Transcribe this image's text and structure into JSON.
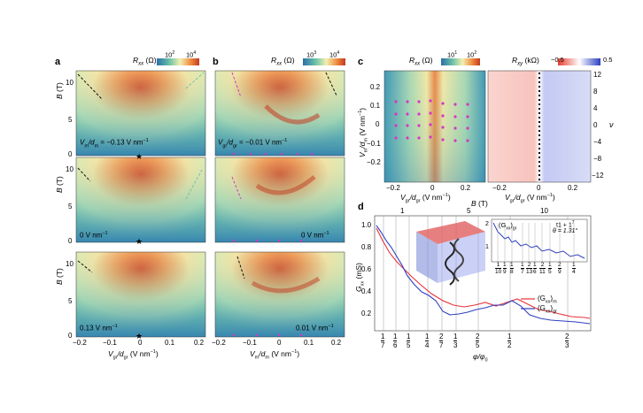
{
  "figure": {
    "panel_letters": {
      "a": "a",
      "b": "b",
      "c": "c",
      "d": "d"
    },
    "panel_a": {
      "colorbar": {
        "title": "R",
        "sub": "xx",
        "unit": "(Ω)",
        "tick1": "10",
        "tick1_exp": "2",
        "tick2": "10",
        "tick2_exp": "4"
      },
      "y_axis_label": "B (T)",
      "y_ticks": [
        "10",
        "5",
        "0"
      ],
      "x_ticks": [
        "−0.2",
        "−0.1",
        "0",
        "0.1",
        "0.2"
      ],
      "x_axis_label": "Vgr/dgr (V nm⁻¹)",
      "x_label_parts": {
        "a": "V",
        "b": "gr",
        "c": "/d",
        "d": "gr",
        "e": " (V nm",
        "f": "−1",
        "g": ")"
      },
      "subplot_labels": {
        "top_pre": "V",
        "top_sub1": "m",
        "top_mid": "/d",
        "top_sub2": "m",
        "top_val": " = −0.13 V nm",
        "top_exp": "−1",
        "mid": "0 V nm",
        "mid_exp": "−1",
        "bot": "0.13 V nm",
        "bot_exp": "−1"
      }
    },
    "panel_b": {
      "colorbar": {
        "title": "R",
        "sub": "xx",
        "unit": "(Ω)",
        "tick1": "10",
        "tick1_exp": "3",
        "tick2": "10",
        "tick2_exp": "4"
      },
      "x_ticks": [
        "−0.2",
        "−0.1",
        "0",
        "0.1",
        "0.2"
      ],
      "x_label_parts": {
        "a": "V",
        "b": "m",
        "c": "/d",
        "d": "m",
        "e": " (V nm",
        "f": "−1",
        "g": ")"
      },
      "subplot_labels": {
        "top_pre": "V",
        "top_sub1": "gr",
        "top_mid": "/d",
        "top_sub2": "gr",
        "top_val": " = −0.01 V nm",
        "top_exp": "−1",
        "mid": "0 V nm",
        "mid_exp": "−1",
        "bot": "0.01 V nm",
        "bot_exp": "−1"
      }
    },
    "panel_c": {
      "left_colorbar": {
        "title": "R",
        "sub": "xx",
        "unit": "(Ω)",
        "tick1": "10",
        "tick1_exp": "1",
        "tick2": "10",
        "tick2_exp": "2"
      },
      "right_colorbar": {
        "title": "R",
        "sub": "xy",
        "unit": "(kΩ)",
        "tick1": "−0.5",
        "tick2": "0.5"
      },
      "y_ticks": [
        "0.2",
        "0.1",
        "0",
        "−0.1",
        "−0.2"
      ],
      "y_label_parts": {
        "a": "V",
        "b": "m",
        "c": "/d",
        "d": "m",
        "e": " (V nm",
        "f": "−1",
        "g": ")"
      },
      "x_ticks": [
        "−0.2",
        "0",
        "0.2"
      ],
      "x_label_parts": {
        "a": "V",
        "b": "gr",
        "c": "/d",
        "d": "gr",
        "e": " (V nm",
        "f": "−1",
        "g": ")"
      },
      "right_y_ticks": [
        "12",
        "8",
        "4",
        "0",
        "−4",
        "−8",
        "−12"
      ],
      "right_y_label": "ν"
    },
    "panel_d": {
      "top_axis_label": "B (T)",
      "top_ticks": [
        "1",
        "5",
        "10"
      ],
      "y_axis_label": "Gxx (mS)",
      "y_label_parts": {
        "a": "G",
        "b": "xx",
        "c": " (mS)"
      },
      "y_ticks": [
        "1.0",
        "0.8",
        "0.6",
        "0.4",
        "0.2"
      ],
      "x_axis_label": "φ/φ0",
      "x_label_parts": {
        "a": "φ/φ",
        "b": "0"
      },
      "x_fractions": [
        {
          "num": "1",
          "den": "7"
        },
        {
          "num": "1",
          "den": "6"
        },
        {
          "num": "1",
          "den": "5"
        },
        {
          "num": "1",
          "den": "4"
        },
        {
          "num": "2",
          "den": "7"
        },
        {
          "num": "1",
          "den": "3"
        },
        {
          "num": "2",
          "den": "5"
        },
        {
          "num": "1",
          "den": "2"
        },
        {
          "num": "2",
          "den": "3"
        }
      ],
      "legend": [
        {
          "main": "(G",
          "sub1": "xx",
          "close": ")",
          "sub2": "m",
          "color": "#e8333a"
        },
        {
          "main": "(G",
          "sub1": "xx",
          "close": ")",
          "sub2": "gr",
          "color": "#2f3fbf"
        }
      ],
      "inset": {
        "title_main": "(G",
        "title_sub1": "xx",
        "title_close": ")",
        "title_sub2": "gr",
        "twist": "t1 + 1",
        "twist_sup": "7",
        "theta": "θ = 1.31°",
        "y_ticks": [
          "2",
          "1"
        ],
        "fractions": [
          {
            "num": "1",
            "den": "10"
          },
          {
            "num": "1",
            "den": "9"
          },
          {
            "num": "1",
            "den": "8"
          },
          {
            "num": "1",
            "den": "7"
          },
          {
            "num": "2",
            "den": "13"
          },
          {
            "num": "1",
            "den": "6"
          },
          {
            "num": "2",
            "den": "11"
          },
          {
            "num": "1",
            "den": "5"
          },
          {
            "num": "2",
            "den": "9"
          },
          {
            "num": "1",
            "den": "4"
          }
        ]
      }
    },
    "colors": {
      "low": "#2b8fb0",
      "mid": "#f3efb0",
      "high": "#cf3d1f",
      "red": "#e8333a",
      "blue": "#2f3fbf",
      "magenta": "#d437c8"
    }
  }
}
